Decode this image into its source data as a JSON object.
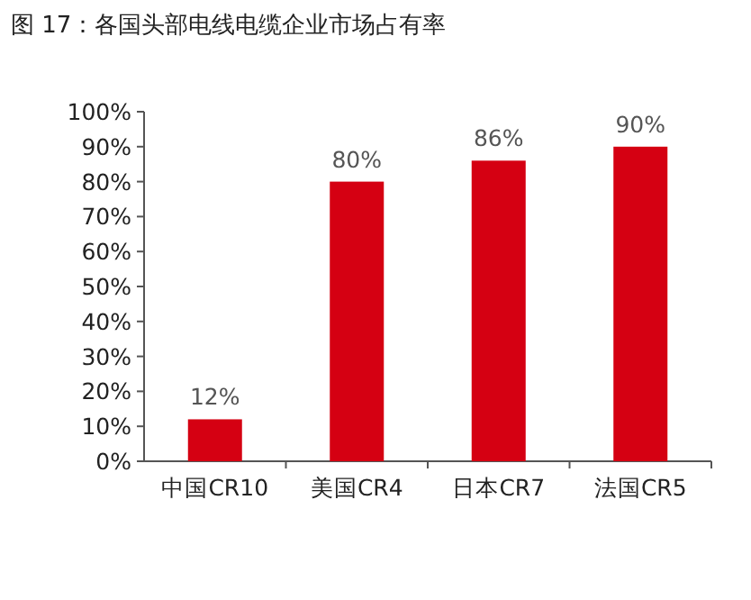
{
  "chart_data": {
    "type": "bar",
    "title": "图 17：各国头部电线电缆企业市场占有率",
    "categories": [
      "中国CR10",
      "美国CR4",
      "日本CR7",
      "法国CR5"
    ],
    "values": [
      12,
      80,
      86,
      90
    ],
    "color": "#d50012",
    "ylim": [
      0,
      100
    ],
    "yticks": [
      {
        "value": 0,
        "label": "0%"
      },
      {
        "value": 10,
        "label": "10%"
      },
      {
        "value": 20,
        "label": "20%"
      },
      {
        "value": 30,
        "label": "30%"
      },
      {
        "value": 40,
        "label": "40%"
      },
      {
        "value": 50,
        "label": "50%"
      },
      {
        "value": 60,
        "label": "60%"
      },
      {
        "value": 70,
        "label": "70%"
      },
      {
        "value": 80,
        "label": "80%"
      },
      {
        "value": 90,
        "label": "90%"
      },
      {
        "value": 100,
        "label": "100%"
      }
    ],
    "value_labels": [
      "12%",
      "80%",
      "86%",
      "90%"
    ]
  }
}
